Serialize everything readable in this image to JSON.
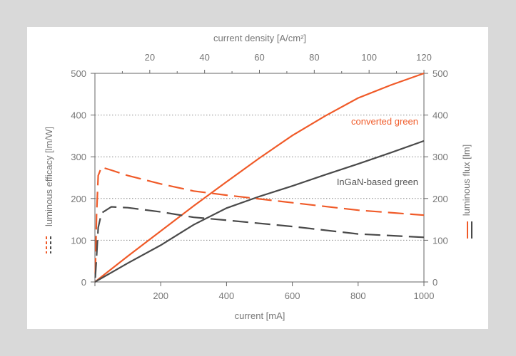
{
  "chart_data": {
    "type": "line",
    "xlabel": "current [mA]",
    "x2label": "current density [A/cm²]",
    "ylabel": "luminous efficacy [lm/W]",
    "y2label": "luminous flux [lm]",
    "xlim": [
      0,
      1000
    ],
    "x2lim": [
      0,
      120
    ],
    "ylim": [
      0,
      500
    ],
    "y2lim": [
      0,
      500
    ],
    "xticks": [
      200,
      400,
      600,
      800,
      1000
    ],
    "x2ticks": [
      20,
      40,
      60,
      80,
      100,
      120
    ],
    "yticks": [
      0,
      100,
      200,
      300,
      400,
      500
    ],
    "grid": "horizontal dotted",
    "colors": {
      "converted": "#f05a28",
      "ingan": "#4a4a4a"
    },
    "annotations": [
      "converted green",
      "InGaN-based green"
    ],
    "series": [
      {
        "name": "converted green",
        "axis": "flux",
        "style": "solid",
        "color": "#f05a28",
        "x": [
          0,
          100,
          200,
          300,
          400,
          500,
          600,
          700,
          800,
          900,
          1000
        ],
        "y": [
          0,
          62,
          122,
          182,
          240,
          297,
          351,
          398,
          441,
          472,
          500
        ]
      },
      {
        "name": "InGaN-based green",
        "axis": "flux",
        "style": "solid",
        "color": "#4a4a4a",
        "x": [
          0,
          100,
          200,
          300,
          400,
          500,
          600,
          700,
          800,
          900,
          1000
        ],
        "y": [
          0,
          45,
          88,
          137,
          177,
          205,
          230,
          257,
          283,
          310,
          338
        ]
      },
      {
        "name": "converted green",
        "axis": "efficacy",
        "style": "dashed",
        "color": "#f05a28",
        "x": [
          1,
          5,
          10,
          20,
          50,
          100,
          200,
          300,
          400,
          600,
          800,
          1000
        ],
        "y": [
          20,
          160,
          255,
          275,
          268,
          255,
          235,
          218,
          208,
          190,
          172,
          160
        ]
      },
      {
        "name": "InGaN-based green",
        "axis": "efficacy",
        "style": "dashed",
        "color": "#4a4a4a",
        "x": [
          1,
          5,
          10,
          20,
          50,
          100,
          200,
          300,
          400,
          600,
          800,
          1000
        ],
        "y": [
          10,
          60,
          130,
          165,
          180,
          178,
          168,
          155,
          148,
          133,
          115,
          107
        ]
      }
    ]
  }
}
